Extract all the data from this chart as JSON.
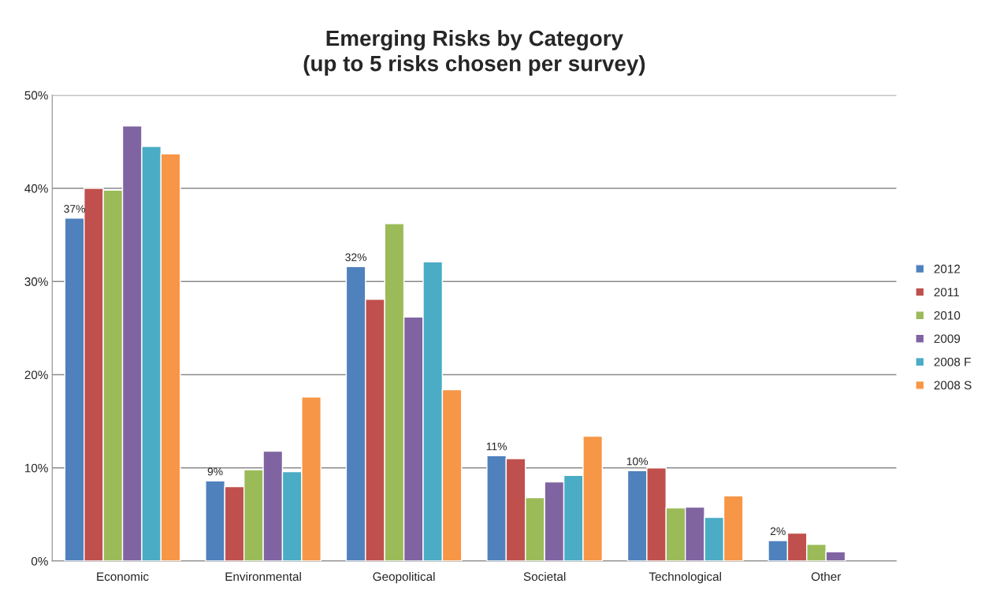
{
  "chart_data": {
    "type": "bar",
    "title": "Emerging Risks by Category\n(up to 5 risks chosen per survey)",
    "categories": [
      "Economic",
      "Environmental",
      "Geopolitical",
      "Societal",
      "Technological",
      "Other"
    ],
    "series": [
      {
        "name": "2012",
        "color": "#4f81bd",
        "values": [
          36.8,
          8.6,
          31.6,
          11.3,
          9.7,
          2.2
        ],
        "value_labels": [
          "37%",
          "9%",
          "32%",
          "11%",
          "10%",
          "2%"
        ]
      },
      {
        "name": "2011",
        "color": "#c0504d",
        "values": [
          40.0,
          8.0,
          28.1,
          11.0,
          10.0,
          3.0
        ]
      },
      {
        "name": "2010",
        "color": "#9bbb59",
        "values": [
          39.8,
          9.8,
          36.2,
          6.8,
          5.7,
          1.8
        ]
      },
      {
        "name": "2009",
        "color": "#8064a2",
        "values": [
          46.7,
          11.8,
          26.2,
          8.5,
          5.8,
          1.0
        ]
      },
      {
        "name": "2008 F",
        "color": "#4bacc6",
        "values": [
          44.5,
          9.6,
          32.1,
          9.2,
          4.7,
          null
        ]
      },
      {
        "name": "2008 S",
        "color": "#f79646",
        "values": [
          43.7,
          17.6,
          18.4,
          13.4,
          7.0,
          null
        ]
      }
    ],
    "ylim": [
      0,
      50
    ],
    "yticks": [
      {
        "value": 0,
        "label": "0%"
      },
      {
        "value": 10,
        "label": "10%"
      },
      {
        "value": 20,
        "label": "20%"
      },
      {
        "value": 30,
        "label": "30%"
      },
      {
        "value": 40,
        "label": "40%"
      },
      {
        "value": 50,
        "label": "50%"
      }
    ],
    "grid": "y",
    "legend": "right"
  }
}
